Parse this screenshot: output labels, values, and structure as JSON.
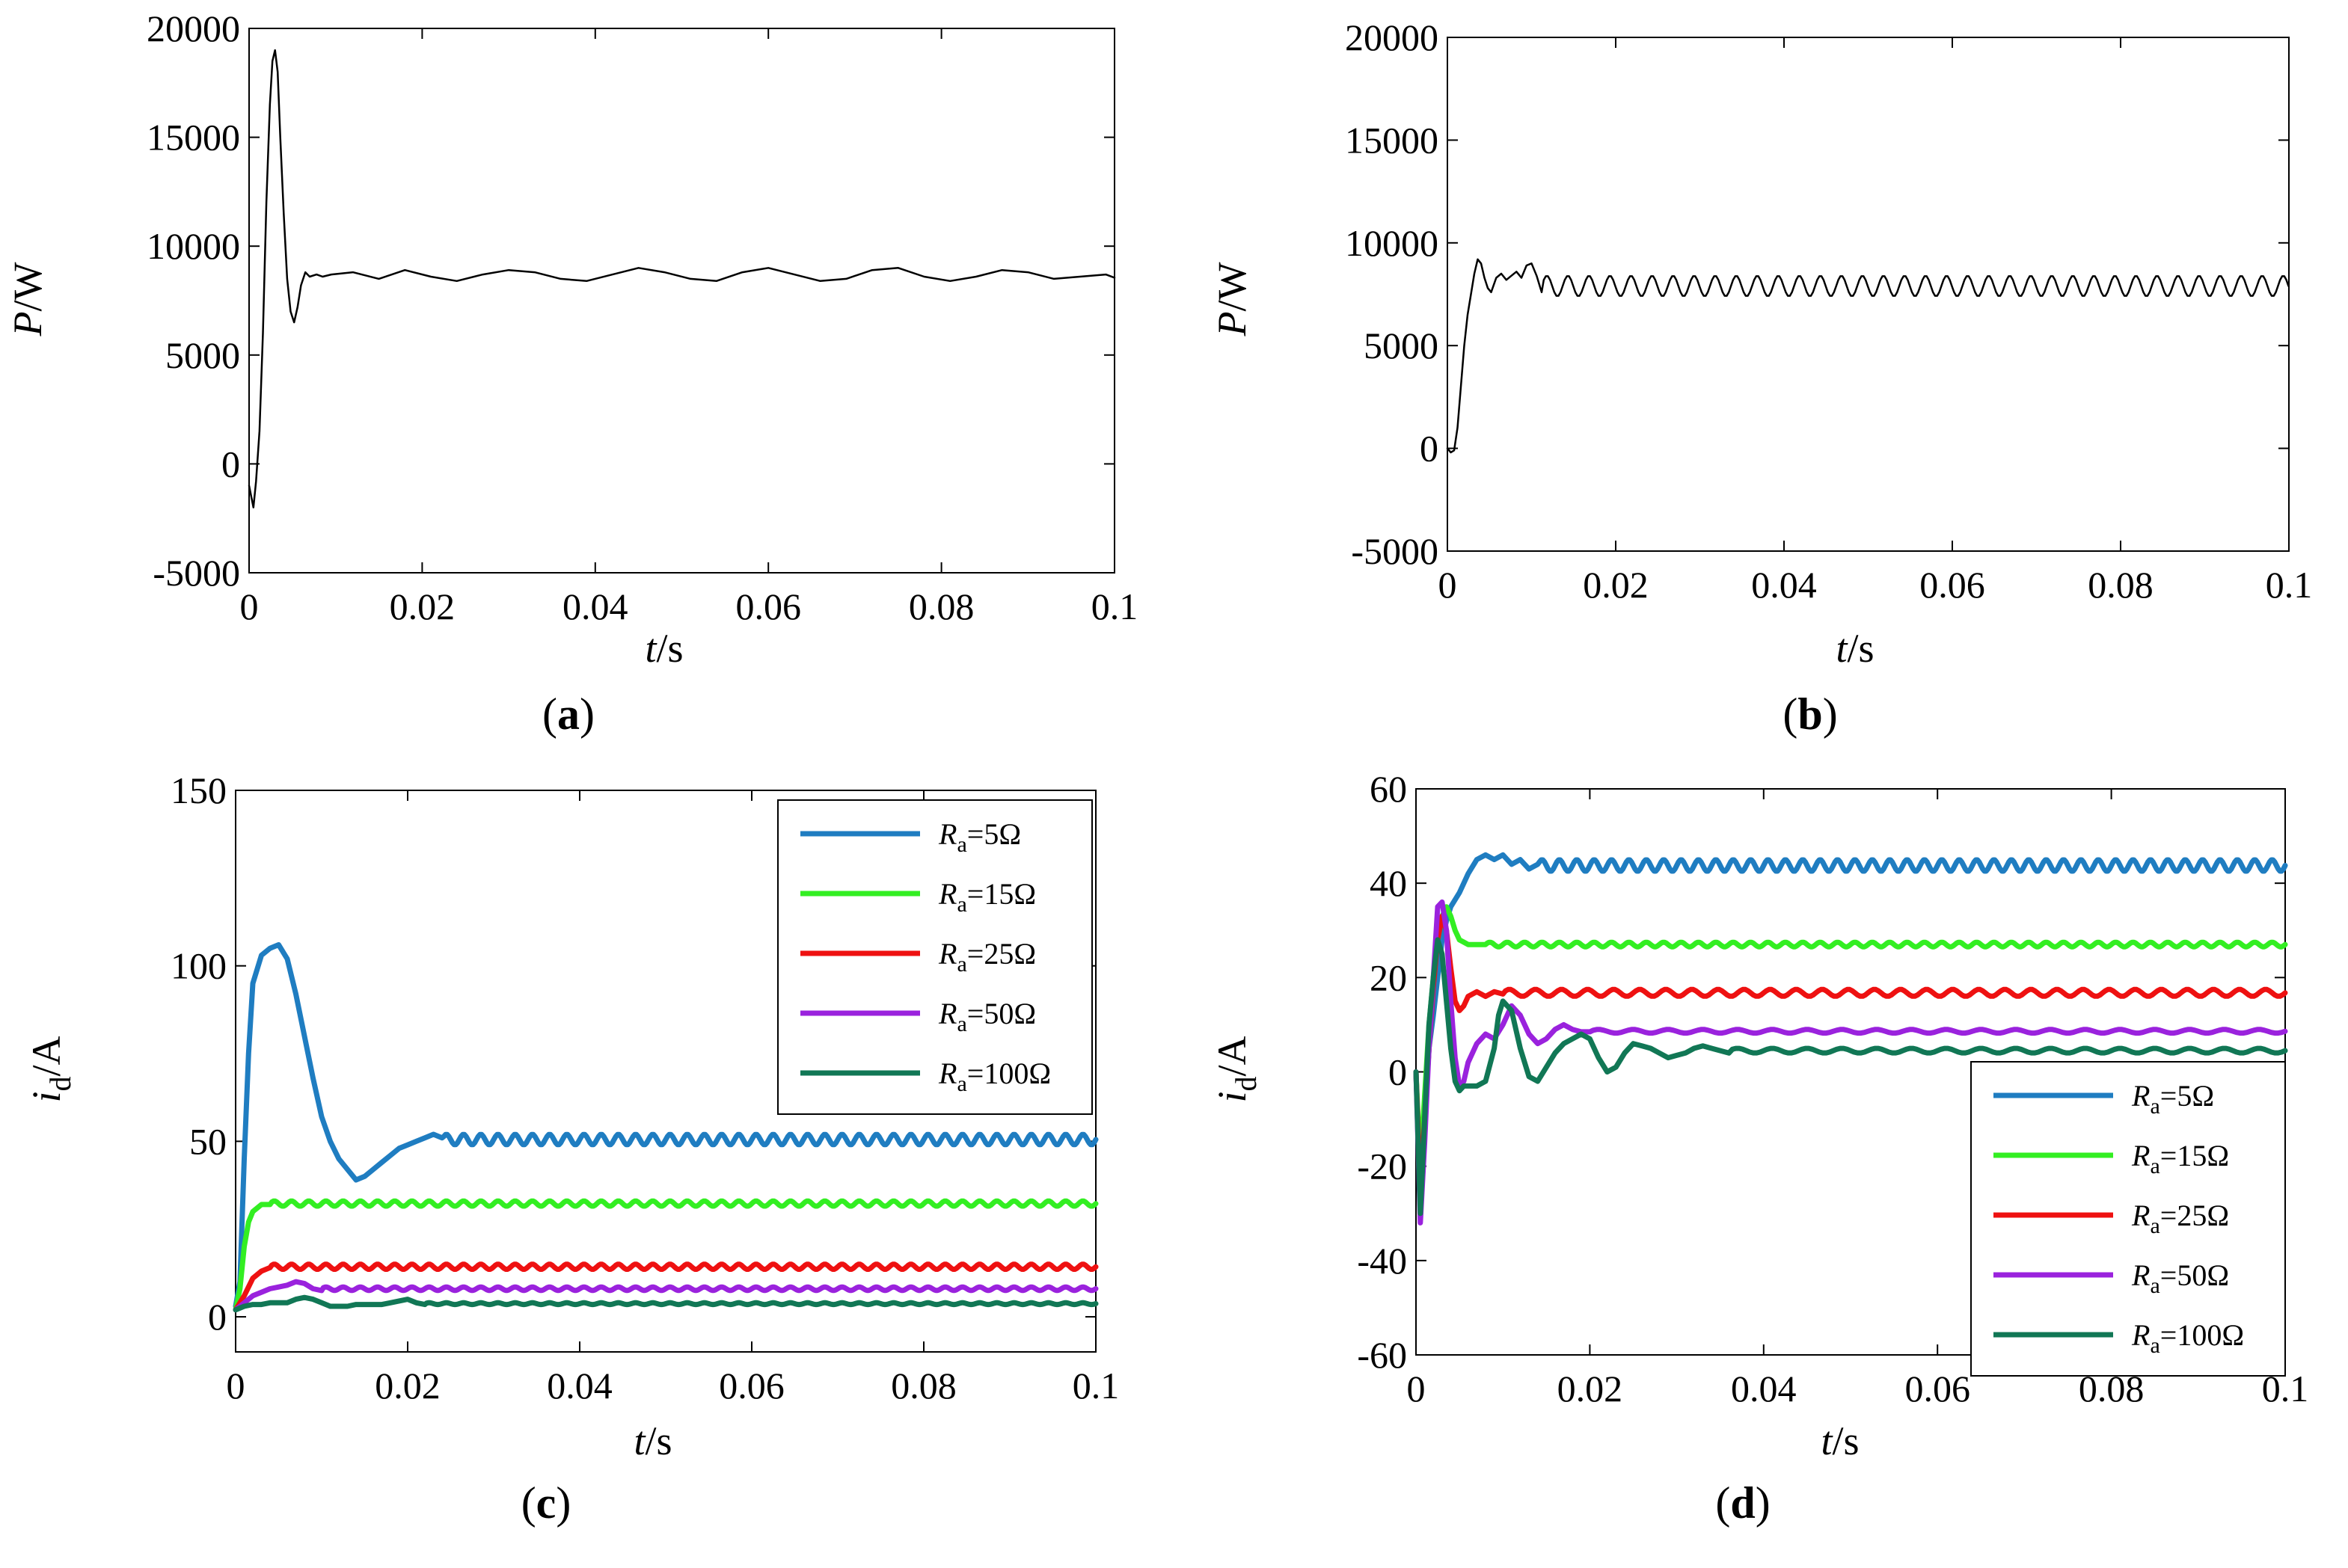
{
  "chart_data": [
    {
      "panel": "a",
      "type": "line",
      "caption": "a",
      "xlabel": {
        "var": "t",
        "unit": "/s"
      },
      "ylabel": {
        "var": "P",
        "unit": "/W"
      },
      "xlim": [
        0,
        0.1
      ],
      "ylim": [
        -5000,
        20000
      ],
      "xticks": [
        "0",
        "0.02",
        "0.04",
        "0.06",
        "0.08",
        "0.1"
      ],
      "yticks": [
        "-5000",
        "0",
        "5000",
        "10000",
        "15000",
        "20000"
      ],
      "series": [
        {
          "name": "P",
          "color": "#000000",
          "x": [
            0,
            0.0005,
            0.0008,
            0.0012,
            0.0016,
            0.002,
            0.0024,
            0.0027,
            0.003,
            0.0033,
            0.0036,
            0.004,
            0.0044,
            0.0048,
            0.0052,
            0.0056,
            0.006,
            0.0065,
            0.007,
            0.0078,
            0.0085,
            0.0095,
            0.012,
            0.015,
            0.018,
            0.021,
            0.024,
            0.027,
            0.03,
            0.033,
            0.036,
            0.039,
            0.042,
            0.045,
            0.048,
            0.051,
            0.054,
            0.057,
            0.06,
            0.063,
            0.066,
            0.069,
            0.072,
            0.075,
            0.078,
            0.081,
            0.084,
            0.087,
            0.09,
            0.093,
            0.096,
            0.099,
            0.1
          ],
          "y": [
            -1000,
            -2000,
            -800,
            1500,
            6000,
            12000,
            16500,
            18500,
            19000,
            18000,
            15000,
            11500,
            8500,
            7000,
            6500,
            7200,
            8200,
            8800,
            8600,
            8700,
            8600,
            8700,
            8800,
            8500,
            8900,
            8600,
            8400,
            8700,
            8900,
            8800,
            8500,
            8400,
            8700,
            9000,
            8800,
            8500,
            8400,
            8800,
            9000,
            8700,
            8400,
            8500,
            8900,
            9000,
            8600,
            8400,
            8600,
            8900,
            8800,
            8500,
            8600,
            8700,
            8550
          ]
        }
      ]
    },
    {
      "panel": "b",
      "type": "line",
      "caption": "b",
      "xlabel": {
        "var": "t",
        "unit": "/s"
      },
      "ylabel": {
        "var": "P",
        "unit": "/W"
      },
      "xlim": [
        0,
        0.1
      ],
      "ylim": [
        -5000,
        20000
      ],
      "xticks": [
        "0",
        "0.02",
        "0.04",
        "0.06",
        "0.08",
        "0.1"
      ],
      "yticks": [
        "-5000",
        "0",
        "5000",
        "10000",
        "15000",
        "20000"
      ],
      "series": [
        {
          "name": "P",
          "color": "#000000",
          "x": [
            0,
            0.0004,
            0.0008,
            0.0012,
            0.0016,
            0.002,
            0.0024,
            0.0028,
            0.0032,
            0.0036,
            0.004,
            0.0044,
            0.0048,
            0.0052,
            0.0058,
            0.0064,
            0.007,
            0.0076,
            0.0082,
            0.0088,
            0.0094,
            0.01,
            0.0106,
            0.0112
          ],
          "y": [
            0,
            -200,
            -100,
            1000,
            3000,
            5000,
            6500,
            7500,
            8500,
            9200,
            9000,
            8300,
            7800,
            7600,
            8300,
            8500,
            8200,
            8400,
            8600,
            8300,
            8900,
            9000,
            8400,
            7600
          ],
          "osc": {
            "from": 0.0112,
            "to": 0.1,
            "period": 0.0025,
            "low": 7400,
            "high": 8400
          }
        }
      ]
    },
    {
      "panel": "c",
      "type": "line",
      "caption": "c",
      "xlabel": {
        "var": "t",
        "unit": "/s"
      },
      "ylabel": {
        "var": "i",
        "sub": "d",
        "unit": "/A"
      },
      "xlim": [
        0,
        0.1
      ],
      "ylim": [
        -10,
        150
      ],
      "xticks": [
        "0",
        "0.02",
        "0.04",
        "0.06",
        "0.08",
        "0.1"
      ],
      "yticks": [
        "0",
        "50",
        "100",
        "150"
      ],
      "legend": {
        "position": "top-right"
      },
      "series": [
        {
          "name": "R",
          "sub": "a",
          "value": "=5Ω",
          "color": "#1f7dc1",
          "x": [
            0,
            0.0005,
            0.001,
            0.0015,
            0.002,
            0.003,
            0.004,
            0.005,
            0.006,
            0.007,
            0.008,
            0.009,
            0.01,
            0.011,
            0.012,
            0.013,
            0.014,
            0.015,
            0.016,
            0.017,
            0.018,
            0.019,
            0.02,
            0.021,
            0.022,
            0.023,
            0.024
          ],
          "y": [
            3,
            10,
            45,
            75,
            95,
            103,
            105,
            106,
            102,
            92,
            80,
            68,
            57,
            50,
            45,
            42,
            39,
            40,
            42,
            44,
            46,
            48,
            49,
            50,
            51,
            52,
            51
          ],
          "osc": {
            "from": 0.024,
            "to": 0.1,
            "period": 0.002,
            "low": 49,
            "high": 52
          }
        },
        {
          "name": "R",
          "sub": "a",
          "value": "=15Ω",
          "color": "#33ee22",
          "x": [
            0,
            0.0005,
            0.001,
            0.0015,
            0.002,
            0.0025,
            0.003,
            0.004
          ],
          "y": [
            2,
            8,
            20,
            27,
            30,
            31,
            32,
            32
          ],
          "osc": {
            "from": 0.004,
            "to": 0.1,
            "period": 0.002,
            "low": 31.5,
            "high": 33
          }
        },
        {
          "name": "R",
          "sub": "a",
          "value": "=25Ω",
          "color": "#ee1111",
          "x": [
            0,
            0.001,
            0.002,
            0.003,
            0.004
          ],
          "y": [
            2,
            6,
            11,
            13,
            14
          ],
          "osc": {
            "from": 0.004,
            "to": 0.1,
            "period": 0.002,
            "low": 13.5,
            "high": 15
          }
        },
        {
          "name": "R",
          "sub": "a",
          "value": "=50Ω",
          "color": "#9a22dd",
          "x": [
            0,
            0.001,
            0.002,
            0.003,
            0.004,
            0.005,
            0.006,
            0.007,
            0.008,
            0.009,
            0.01
          ],
          "y": [
            2,
            4,
            6,
            7,
            8,
            8.5,
            9,
            10,
            9.5,
            8,
            7.5
          ],
          "osc": {
            "from": 0.01,
            "to": 0.1,
            "period": 0.002,
            "low": 7.5,
            "high": 8.5
          }
        },
        {
          "name": "R",
          "sub": "a",
          "value": "=100Ω",
          "color": "#117755",
          "x": [
            0,
            0.001,
            0.002,
            0.003,
            0.004,
            0.005,
            0.006,
            0.007,
            0.008,
            0.009,
            0.01,
            0.011,
            0.012,
            0.013,
            0.014,
            0.015,
            0.016,
            0.017,
            0.018,
            0.019,
            0.02,
            0.021,
            0.022
          ],
          "y": [
            2,
            3,
            3.5,
            3.5,
            4,
            4,
            4,
            5,
            5.5,
            5,
            4,
            3,
            3,
            3,
            3.5,
            3.5,
            3.5,
            3.5,
            4,
            4.5,
            5,
            4,
            3.5
          ],
          "osc": {
            "from": 0.022,
            "to": 0.1,
            "period": 0.002,
            "low": 3.5,
            "high": 4
          }
        }
      ]
    },
    {
      "panel": "d",
      "type": "line",
      "caption": "d",
      "xlabel": {
        "var": "t",
        "unit": "/s"
      },
      "ylabel": {
        "var": "i",
        "sub": "d",
        "unit": "/A"
      },
      "xlim": [
        0,
        0.1
      ],
      "ylim": [
        -60,
        60
      ],
      "xticks": [
        "0",
        "0.02",
        "0.04",
        "0.06",
        "0.08",
        "0.1"
      ],
      "yticks": [
        "-60",
        "-40",
        "-20",
        "0",
        "20",
        "40",
        "60"
      ],
      "legend": {
        "position": "bottom-right"
      },
      "series": [
        {
          "name": "R",
          "sub": "a",
          "value": "=5Ω",
          "color": "#1f7dc1",
          "x": [
            0,
            0.0005,
            0.001,
            0.0015,
            0.002,
            0.0025,
            0.003,
            0.0035,
            0.004,
            0.005,
            0.006,
            0.007,
            0.008,
            0.009,
            0.01,
            0.011,
            0.012,
            0.013,
            0.014
          ],
          "y": [
            0,
            -25,
            -10,
            5,
            12,
            20,
            28,
            32,
            35,
            38,
            42,
            45,
            46,
            45,
            46,
            44,
            45,
            43,
            44
          ],
          "osc": {
            "from": 0.014,
            "to": 0.1,
            "period": 0.002,
            "low": 42.5,
            "high": 45
          }
        },
        {
          "name": "R",
          "sub": "a",
          "value": "=15Ω",
          "color": "#33ee22",
          "x": [
            0,
            0.0005,
            0.001,
            0.0015,
            0.002,
            0.0025,
            0.003,
            0.0035,
            0.004,
            0.0045,
            0.005,
            0.0055,
            0.006,
            0.007,
            0.008
          ],
          "y": [
            0,
            -20,
            -5,
            10,
            20,
            28,
            33,
            35,
            33,
            30,
            28,
            27.5,
            27,
            27,
            27
          ],
          "osc": {
            "from": 0.008,
            "to": 0.1,
            "period": 0.002,
            "low": 26.5,
            "high": 27.5
          }
        },
        {
          "name": "R",
          "sub": "a",
          "value": "=25Ω",
          "color": "#ee1111",
          "x": [
            0,
            0.0005,
            0.001,
            0.0015,
            0.002,
            0.0025,
            0.003,
            0.0035,
            0.004,
            0.0045,
            0.005,
            0.0055,
            0.006,
            0.007,
            0.008,
            0.009,
            0.01
          ],
          "y": [
            0,
            -25,
            -10,
            5,
            18,
            28,
            33,
            30,
            22,
            15,
            13,
            14,
            16,
            17,
            16,
            17,
            16.5
          ],
          "osc": {
            "from": 0.01,
            "to": 0.1,
            "period": 0.003,
            "low": 16,
            "high": 17.5
          }
        },
        {
          "name": "R",
          "sub": "a",
          "value": "=50Ω",
          "color": "#9a22dd",
          "x": [
            0,
            0.0005,
            0.001,
            0.0015,
            0.002,
            0.0025,
            0.003,
            0.0035,
            0.004,
            0.0045,
            0.005,
            0.0055,
            0.006,
            0.007,
            0.008,
            0.009,
            0.01,
            0.011,
            0.012,
            0.013,
            0.014,
            0.015,
            0.016,
            0.017,
            0.018,
            0.019,
            0.02
          ],
          "y": [
            0,
            -32,
            -15,
            5,
            20,
            35,
            36,
            30,
            15,
            3,
            -3,
            -2,
            2,
            6,
            8,
            7,
            10,
            14,
            12,
            8,
            6,
            7,
            9,
            10,
            9,
            8.5,
            8.5
          ],
          "osc": {
            "from": 0.02,
            "to": 0.1,
            "period": 0.004,
            "low": 8.2,
            "high": 9
          }
        },
        {
          "name": "R",
          "sub": "a",
          "value": "=100Ω",
          "color": "#117755",
          "x": [
            0,
            0.0005,
            0.001,
            0.0015,
            0.002,
            0.0025,
            0.003,
            0.0035,
            0.004,
            0.0045,
            0.005,
            0.0055,
            0.006,
            0.007,
            0.008,
            0.009,
            0.0095,
            0.01,
            0.011,
            0.012,
            0.013,
            0.014,
            0.015,
            0.016,
            0.017,
            0.018,
            0.019,
            0.02,
            0.021,
            0.022,
            0.023,
            0.024,
            0.025,
            0.026,
            0.027,
            0.028,
            0.029,
            0.03,
            0.031,
            0.032,
            0.033,
            0.034,
            0.035,
            0.036
          ],
          "y": [
            0,
            -30,
            -10,
            10,
            20,
            28,
            25,
            15,
            5,
            -2,
            -4,
            -3,
            -3,
            -3,
            -2,
            5,
            12,
            15,
            13,
            5,
            -1,
            -2,
            1,
            4,
            6,
            7,
            8,
            7,
            3,
            0,
            1,
            4,
            6,
            5.5,
            5,
            4,
            3,
            3.5,
            4,
            5,
            5.5,
            5,
            4.5,
            4
          ],
          "osc": {
            "from": 0.036,
            "to": 0.1,
            "period": 0.004,
            "low": 4,
            "high": 5
          }
        }
      ]
    }
  ]
}
